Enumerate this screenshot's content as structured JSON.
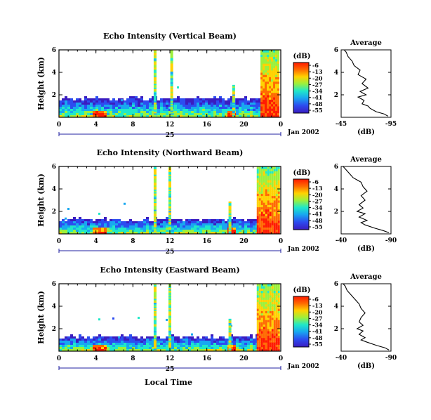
{
  "figure": {
    "shared_xlabel": "Local Time",
    "date_label": "Jan 2002",
    "day_label": "25",
    "ylabel": "Height (km)",
    "colorbar_unit": "(dB)",
    "avg_title": "Average",
    "avg_xlabel": "(dB)"
  },
  "chart_data": [
    {
      "type": "heatmap",
      "title": "Echo Intensity (Vertical Beam)",
      "x_ticks": [
        "0",
        "4",
        "8",
        "12",
        "16",
        "20",
        "0"
      ],
      "y_ticks": [
        "2",
        "4",
        "6"
      ],
      "xlim": [
        0,
        24
      ],
      "ylim": [
        0,
        6
      ],
      "colorbar_ticks": [
        "-6",
        "-13",
        "-20",
        "-27",
        "-34",
        "-41",
        "-48",
        "-55"
      ],
      "colorbar_range": [
        -55,
        -6
      ],
      "features": {
        "ground_clutter_top_km": 1.6,
        "spike_hours": [
          10.4,
          12.2,
          18.9
        ],
        "rain_start_hour": 21.8,
        "rain_top_km": 6.0
      },
      "average_profile": {
        "xlim": [
          -45,
          -95
        ],
        "x_ticks": [
          "-45",
          "-95"
        ],
        "y_ticks": [
          "2",
          "4",
          "6"
        ],
        "height_km": [
          0.1,
          0.3,
          0.5,
          0.8,
          1.0,
          1.2,
          1.5,
          1.8,
          2.0,
          2.3,
          2.6,
          3.0,
          3.4,
          3.8,
          4.2,
          4.6,
          5.0,
          5.4,
          5.8,
          6.0
        ],
        "db": [
          -92,
          -88,
          -80,
          -74,
          -72,
          -66,
          -68,
          -62,
          -70,
          -64,
          -72,
          -66,
          -70,
          -62,
          -64,
          -58,
          -56,
          -52,
          -50,
          -48
        ]
      }
    },
    {
      "type": "heatmap",
      "title": "Echo Intensity (Northward Beam)",
      "x_ticks": [
        "0",
        "4",
        "8",
        "12",
        "16",
        "20",
        "0"
      ],
      "y_ticks": [
        "2",
        "4",
        "6"
      ],
      "xlim": [
        0,
        24
      ],
      "ylim": [
        0,
        6
      ],
      "colorbar_ticks": [
        "-6",
        "-13",
        "-20",
        "-27",
        "-34",
        "-41",
        "-48",
        "-55"
      ],
      "colorbar_range": [
        -55,
        -6
      ],
      "features": {
        "ground_clutter_top_km": 1.2,
        "spike_hours": [
          10.4,
          12.0,
          18.5
        ],
        "rain_start_hour": 21.4,
        "rain_top_km": 6.0
      },
      "average_profile": {
        "xlim": [
          -40,
          -90
        ],
        "x_ticks": [
          "-40",
          "-90"
        ],
        "y_ticks": [
          "2",
          "4",
          "6"
        ],
        "height_km": [
          0.1,
          0.3,
          0.5,
          0.8,
          1.0,
          1.2,
          1.5,
          1.8,
          2.0,
          2.3,
          2.6,
          3.0,
          3.4,
          3.8,
          4.2,
          4.6,
          5.0,
          5.4,
          5.8,
          6.0
        ],
        "db": [
          -88,
          -82,
          -74,
          -64,
          -60,
          -66,
          -58,
          -64,
          -56,
          -62,
          -58,
          -64,
          -60,
          -66,
          -62,
          -60,
          -52,
          -48,
          -44,
          -42
        ]
      }
    },
    {
      "type": "heatmap",
      "title": "Echo Intensity (Eastward Beam)",
      "x_ticks": [
        "0",
        "4",
        "8",
        "12",
        "16",
        "20",
        "0"
      ],
      "y_ticks": [
        "2",
        "4",
        "6"
      ],
      "xlim": [
        0,
        24
      ],
      "ylim": [
        0,
        6
      ],
      "colorbar_ticks": [
        "-6",
        "-13",
        "-20",
        "-27",
        "-34",
        "-41",
        "-48",
        "-55"
      ],
      "colorbar_range": [
        -55,
        -6
      ],
      "features": {
        "ground_clutter_top_km": 1.2,
        "spike_hours": [
          10.4,
          12.0,
          18.5
        ],
        "rain_start_hour": 21.4,
        "rain_top_km": 6.0
      },
      "average_profile": {
        "xlim": [
          -40,
          -90
        ],
        "x_ticks": [
          "-40",
          "-90"
        ],
        "y_ticks": [
          "2",
          "4",
          "6"
        ],
        "height_km": [
          0.1,
          0.3,
          0.5,
          0.8,
          1.0,
          1.2,
          1.5,
          1.8,
          2.0,
          2.3,
          2.6,
          3.0,
          3.4,
          3.8,
          4.2,
          4.6,
          5.0,
          5.4,
          5.8,
          6.0
        ],
        "db": [
          -88,
          -84,
          -76,
          -66,
          -60,
          -64,
          -58,
          -62,
          -56,
          -62,
          -58,
          -60,
          -64,
          -60,
          -58,
          -54,
          -50,
          -46,
          -44,
          -42
        ]
      }
    }
  ]
}
